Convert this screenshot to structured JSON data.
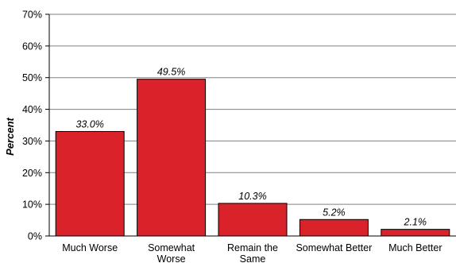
{
  "chart_data": {
    "type": "bar",
    "title": "",
    "xlabel": "",
    "ylabel": "Percent",
    "ylim": [
      0,
      70
    ],
    "yticks": [
      "0%",
      "10%",
      "20%",
      "30%",
      "40%",
      "50%",
      "60%",
      "70%"
    ],
    "grid": true,
    "categories": [
      [
        "Much Worse"
      ],
      [
        "Somewhat",
        "Worse"
      ],
      [
        "Remain the",
        "Same"
      ],
      [
        "Somewhat Better"
      ],
      [
        "Much Better"
      ]
    ],
    "values": [
      33.0,
      49.5,
      10.3,
      5.2,
      2.1
    ],
    "data_labels": [
      "33.0%",
      "49.5%",
      "10.3%",
      "5.2%",
      "2.1%"
    ],
    "bar_color": "#d9222a",
    "bar_edge_color": "#000000"
  }
}
